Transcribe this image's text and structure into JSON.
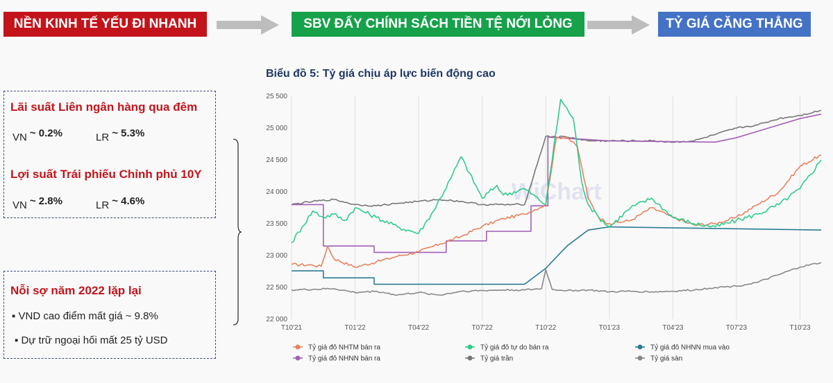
{
  "banners": [
    {
      "label": "NỀN KINH TẾ YẾU ĐI NHANH",
      "color": "#c4141b"
    },
    {
      "label": "SBV ĐẨY CHÍNH SÁCH TIỀN TỆ NỚI LỎNG",
      "color": "#16a14a"
    },
    {
      "label": "TỶ GIÁ CĂNG THẲNG",
      "color": "#4472c4"
    }
  ],
  "left_panel": {
    "interbank_title": "Lãi suất Liên ngân hàng qua đêm",
    "interbank": [
      {
        "country": "VN",
        "value": "~ 0.2%"
      },
      {
        "country": "LR",
        "value": "~ 5.3%"
      }
    ],
    "bond_title": "Lợi suất Trái phiếu Chỉnh phủ 10Y",
    "bond": [
      {
        "country": "VN",
        "value": "~ 2.8%"
      },
      {
        "country": "LR",
        "value": "~ 4.6%"
      }
    ],
    "fear_title": "Nỗi sợ năm 2022 lặp lại",
    "bullets": [
      "VND cao điểm mất giá ~ 9.8%",
      "Dự trữ ngoại hối mất 25 tỷ USD"
    ]
  },
  "chart_title": "Biểu đồ 5: Tỷ giá chịu áp lực biến động cao",
  "watermark": "WiChart",
  "chart_data": {
    "type": "line",
    "title": "Biểu đồ 5: Tỷ giá chịu áp lực biến động cao",
    "ylim": [
      22000,
      25500
    ],
    "yticks": [
      22000,
      22500,
      23000,
      23500,
      24000,
      24500,
      25000,
      25500
    ],
    "ytick_labels": [
      "22 000",
      "22 500",
      "23 000",
      "23 500",
      "24 000",
      "24 500",
      "25 000",
      "25 500"
    ],
    "xlim": [
      0,
      25
    ],
    "xticks": [
      0,
      3,
      6,
      9,
      12,
      15,
      18,
      21,
      24
    ],
    "xtick_labels": [
      "T10'21",
      "T01'22",
      "T04'22",
      "T07'22",
      "T10'22",
      "T01'23",
      "T04'23",
      "T07'23",
      "T10'23"
    ],
    "grid": "vertical",
    "legend_position": "bottom",
    "series": [
      {
        "name": "Tỷ giá đô NHTM bán ra",
        "color": "#e8825f",
        "x": [
          0,
          1,
          1.4,
          1.7,
          2,
          3,
          4,
          5,
          6,
          7,
          8,
          9,
          10,
          11,
          12,
          12.5,
          13,
          13.5,
          14,
          14.5,
          15,
          16,
          17,
          18,
          19,
          20,
          21,
          22,
          23,
          24,
          25
        ],
        "y": [
          22860,
          22850,
          22830,
          23150,
          22950,
          22820,
          22900,
          22990,
          23060,
          23180,
          23300,
          23460,
          23580,
          23650,
          23800,
          24850,
          24860,
          24700,
          23900,
          23600,
          23500,
          23550,
          23750,
          23600,
          23480,
          23500,
          23600,
          23800,
          24000,
          24400,
          24580
        ]
      },
      {
        "name": "Tỷ giá đô tự do bán ra",
        "color": "#2ecc8b",
        "x": [
          0,
          0.5,
          1,
          1.5,
          2,
          2.5,
          3,
          4,
          5,
          6,
          6.7,
          7.5,
          8,
          9,
          9.7,
          10,
          11,
          12,
          12.7,
          13.3,
          13.7,
          14,
          14.5,
          15,
          16,
          17,
          18,
          19,
          20,
          21,
          22,
          23,
          24,
          25
        ],
        "y": [
          23200,
          23450,
          23700,
          23600,
          23650,
          23550,
          23750,
          23600,
          23450,
          23350,
          23700,
          24200,
          24550,
          23900,
          24100,
          23950,
          24050,
          23800,
          25450,
          25150,
          24150,
          23800,
          23600,
          23450,
          23750,
          23900,
          23600,
          23500,
          23450,
          23550,
          23650,
          23800,
          24050,
          24500
        ]
      },
      {
        "name": "Tỷ giá đô NHNN mua vào",
        "color": "#2b7c93",
        "x": [
          0,
          1.5,
          1.5,
          3.9,
          3.9,
          11,
          12,
          13,
          14,
          15,
          25
        ],
        "y": [
          22760,
          22760,
          22650,
          22650,
          22550,
          22550,
          22800,
          23150,
          23400,
          23450,
          23400
        ]
      },
      {
        "name": "Tỷ giá đô NHNN bán ra",
        "color": "#a05fb5",
        "x": [
          0,
          1.5,
          1.5,
          3.9,
          3.9,
          7.3,
          7.3,
          9.2,
          9.2,
          11.3,
          11.3,
          12.1,
          12.1,
          15,
          20,
          21,
          22,
          23,
          24,
          25
        ],
        "y": [
          23800,
          23800,
          23150,
          23150,
          23050,
          23050,
          23230,
          23230,
          23380,
          23380,
          23780,
          23780,
          24860,
          24800,
          24780,
          24850,
          24950,
          25050,
          25150,
          25220
        ]
      },
      {
        "name": "Tỷ giá trần",
        "color": "#777777",
        "x": [
          0,
          1,
          2,
          3,
          4,
          5,
          6,
          7,
          8,
          9,
          10,
          11,
          12,
          13,
          14,
          15,
          16,
          17,
          18,
          19,
          20,
          21,
          22,
          23,
          24,
          25
        ],
        "y": [
          23800,
          23850,
          23880,
          23800,
          23780,
          23820,
          23850,
          23880,
          23850,
          23800,
          23800,
          23800,
          24870,
          24860,
          24800,
          24800,
          24800,
          24800,
          24780,
          24800,
          24900,
          25000,
          25050,
          25150,
          25200,
          25280
        ]
      },
      {
        "name": "Tỷ giá sàn",
        "color": "#888888",
        "x": [
          0,
          2,
          3,
          4,
          5,
          6,
          7,
          8,
          9,
          10,
          11,
          11.8,
          12.0,
          12.3,
          13,
          14,
          15,
          16,
          17,
          18,
          19,
          20,
          21,
          22,
          23,
          24,
          25
        ],
        "y": [
          22460,
          22480,
          22420,
          22440,
          22380,
          22420,
          22380,
          22440,
          22450,
          22460,
          22460,
          22480,
          22780,
          22470,
          22450,
          22460,
          22430,
          22440,
          22430,
          22440,
          22460,
          22500,
          22520,
          22580,
          22700,
          22820,
          22890
        ]
      }
    ]
  }
}
